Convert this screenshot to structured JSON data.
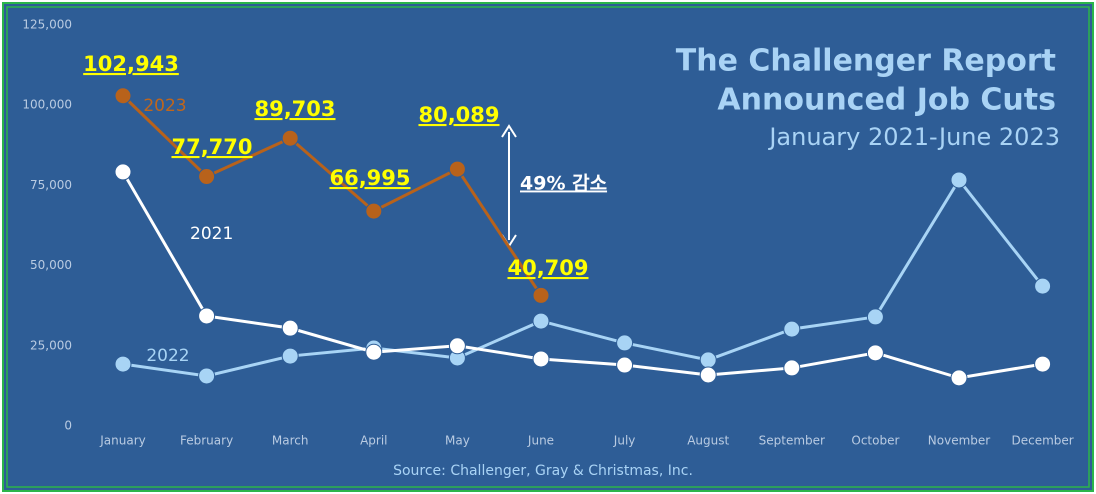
{
  "chart_data": {
    "type": "line",
    "title": [
      "The Challenger Report",
      "Announced Job Cuts"
    ],
    "subtitle": "January 2021-June 2023",
    "source": "Source: Challenger, Gray & Christmas, Inc.",
    "annotation": "49% 감소",
    "categories": [
      "January",
      "February",
      "March",
      "April",
      "May",
      "June",
      "July",
      "August",
      "September",
      "October",
      "November",
      "December"
    ],
    "ylim": [
      0,
      125000
    ],
    "yticks": [
      0,
      {
        "value": 25000,
        "label": "25,000"
      },
      {
        "value": 50000,
        "label": "50,000"
      },
      {
        "value": 75000,
        "label": "75,000"
      },
      {
        "value": 100000,
        "label": "100,000"
      },
      {
        "value": 125000,
        "label": "125,000"
      }
    ],
    "grid": false,
    "series": [
      {
        "name": "2021",
        "color": "#ffffff",
        "values": [
          79200,
          34300,
          30500,
          23000,
          25000,
          20900,
          19000,
          15900,
          18100,
          22800,
          15000,
          19300
        ]
      },
      {
        "name": "2022",
        "color": "#a8d4f5",
        "values": [
          19300,
          15600,
          21800,
          24300,
          21200,
          32700,
          25900,
          20600,
          30200,
          34000,
          76700,
          43600
        ]
      },
      {
        "name": "2023",
        "color": "#b8621b",
        "values": [
          102943,
          77770,
          89703,
          66995,
          80089,
          40709,
          null,
          null,
          null,
          null,
          null,
          null
        ],
        "value_labels": [
          "102,943",
          "77,770",
          "89,703",
          "66,995",
          "80,089",
          "40,709",
          null,
          null,
          null,
          null,
          null,
          null
        ]
      }
    ]
  }
}
